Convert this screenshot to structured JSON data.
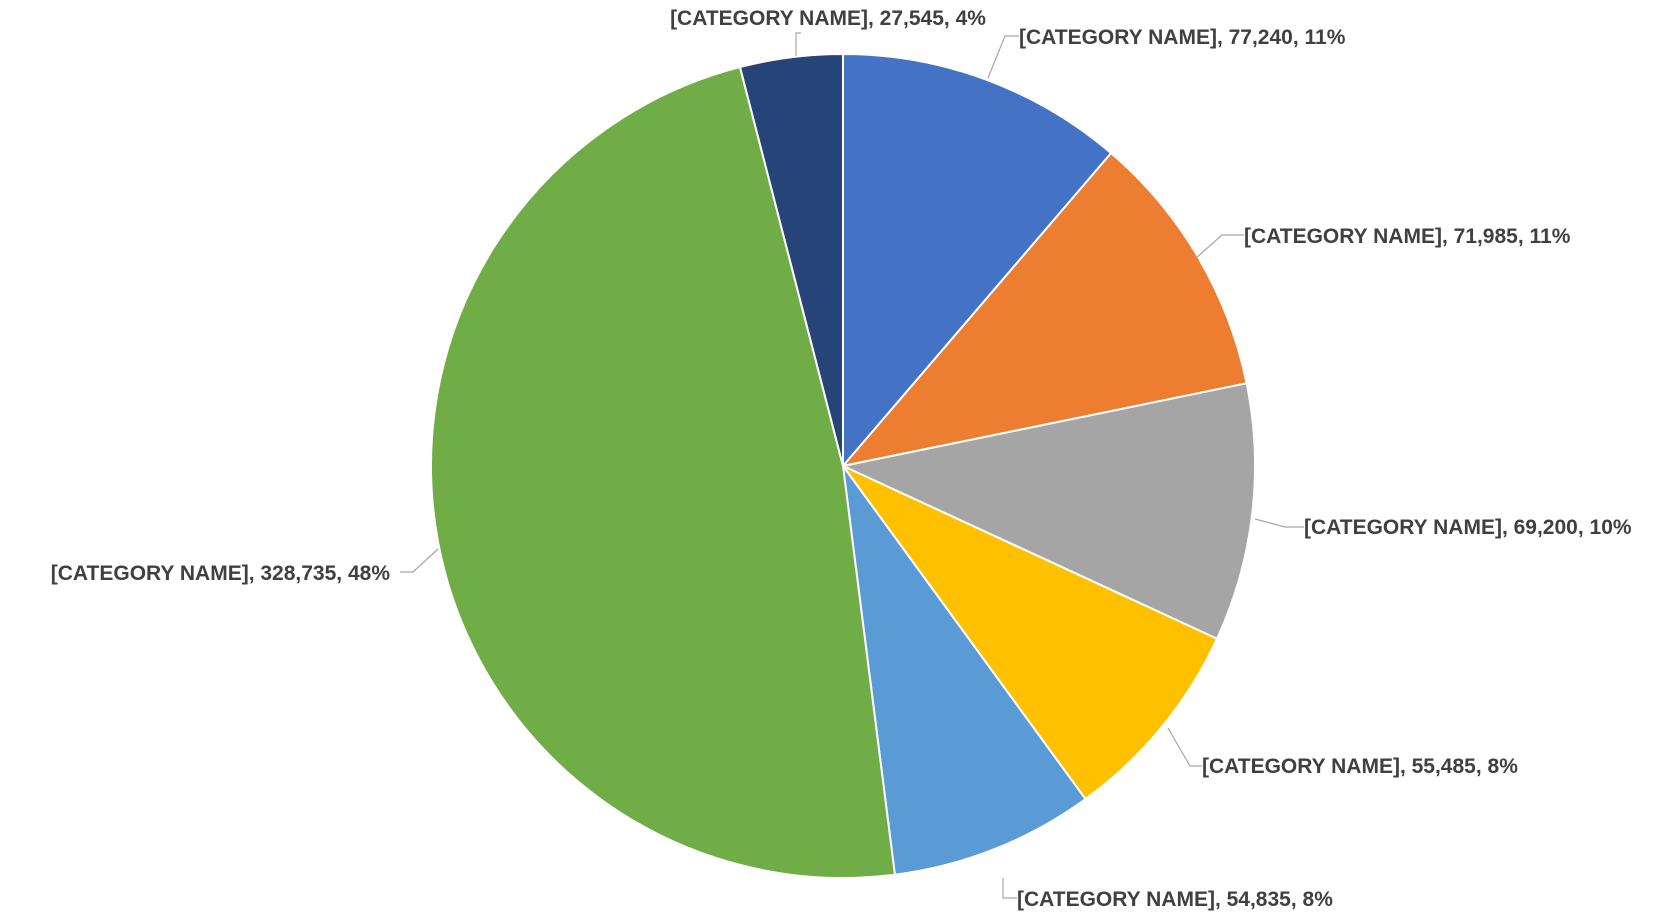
{
  "chart_data": {
    "type": "pie",
    "title": "",
    "series": [
      {
        "values": [
          77240,
          71985,
          69200,
          55485,
          54835,
          328735,
          27545
        ]
      }
    ],
    "categories": [
      "[CATEGORY NAME]",
      "[CATEGORY NAME]",
      "[CATEGORY NAME]",
      "[CATEGORY NAME]",
      "[CATEGORY NAME]",
      "[CATEGORY NAME]",
      "[CATEGORY NAME]"
    ],
    "values": [
      77240,
      71985,
      69200,
      55485,
      54835,
      328735,
      27545
    ],
    "percents": [
      "11%",
      "11%",
      "10%",
      "8%",
      "8%",
      "48%",
      "4%"
    ],
    "data_labels": [
      "[CATEGORY NAME], 77,240, 11%",
      "[CATEGORY NAME], 71,985, 11%",
      "[CATEGORY NAME], 69,200, 10%",
      "[CATEGORY NAME], 55,485, 8%",
      "[CATEGORY NAME], 54,835, 8%",
      "[CATEGORY NAME], 328,735, 48%",
      "[CATEGORY NAME], 27,545, 4%"
    ],
    "colors": [
      "#4472C4",
      "#ED7D31",
      "#A5A5A5",
      "#FFC000",
      "#5B9BD5",
      "#70AD47",
      "#264478"
    ],
    "start_angle": "12 o'clock",
    "direction": "clockwise",
    "legend": "none"
  }
}
